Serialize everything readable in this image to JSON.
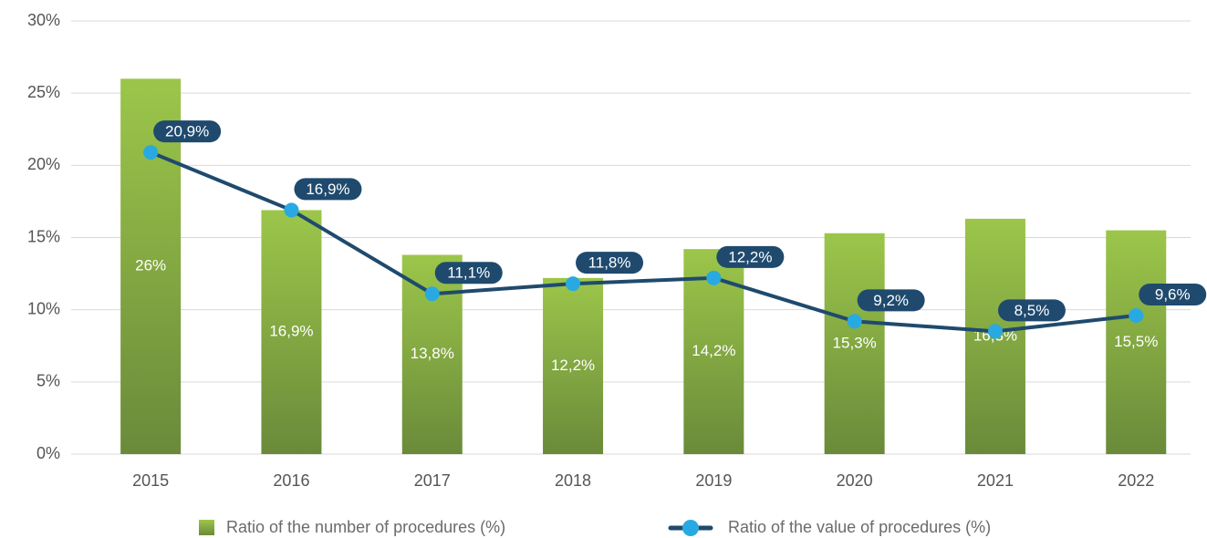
{
  "chart_data": {
    "type": "bar",
    "categories": [
      "2015",
      "2016",
      "2017",
      "2018",
      "2019",
      "2020",
      "2021",
      "2022"
    ],
    "series": [
      {
        "name": "Ratio of the number of procedures (%)",
        "type": "bar",
        "color": "#8bb443",
        "values": [
          26,
          16.9,
          13.8,
          12.2,
          14.2,
          15.3,
          16.3,
          15.5
        ],
        "value_labels": [
          "26%",
          "16,9%",
          "13,8%",
          "12,2%",
          "14,2%",
          "15,3%",
          "16,3%",
          "15,5%"
        ]
      },
      {
        "name": "Ratio of the value of procedures (%)",
        "type": "line",
        "color": "#1f4a6e",
        "marker_color": "#29a9e1",
        "values": [
          20.9,
          16.9,
          11.1,
          11.8,
          12.2,
          9.2,
          8.5,
          9.6
        ],
        "value_labels": [
          "20,9%",
          "16,9%",
          "11,1%",
          "11,8%",
          "12,2%",
          "9,2%",
          "8,5%",
          "9,6%"
        ]
      }
    ],
    "ylim": [
      0,
      30
    ],
    "yticks": [
      {
        "value": 0,
        "label": "0%"
      },
      {
        "value": 5,
        "label": "5%"
      },
      {
        "value": 10,
        "label": "10%"
      },
      {
        "value": 15,
        "label": "15%"
      },
      {
        "value": 20,
        "label": "20%"
      },
      {
        "value": 25,
        "label": "25%"
      },
      {
        "value": 30,
        "label": "30%"
      }
    ],
    "grid": true
  }
}
